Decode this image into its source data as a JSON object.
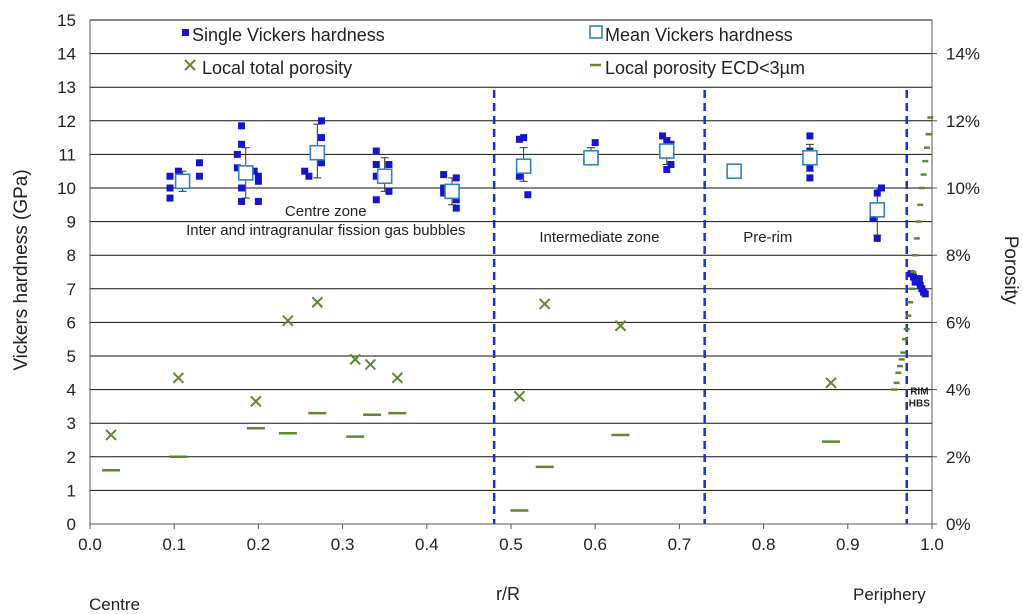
{
  "chart_data": {
    "type": "scatter",
    "xlabel": "r/R",
    "ylabel": "Vickers hardness (GPa)",
    "y2label": "Porosity",
    "xlim": [
      0.0,
      1.0
    ],
    "ylim": [
      0,
      15
    ],
    "y2lim": [
      0,
      0.15
    ],
    "grid": "horizontal",
    "x_ticks": [
      "0.0",
      "0.1",
      "0.2",
      "0.3",
      "0.4",
      "0.5",
      "0.6",
      "0.7",
      "0.8",
      "0.9",
      "1.0"
    ],
    "y_ticks": [
      "0",
      "1",
      "2",
      "3",
      "4",
      "5",
      "6",
      "7",
      "8",
      "9",
      "10",
      "11",
      "12",
      "13",
      "14",
      "15"
    ],
    "y2_ticks": [
      "0%",
      "2%",
      "4%",
      "6%",
      "8%",
      "10%",
      "12%",
      "14%"
    ],
    "x_end_labels": {
      "left": "Centre",
      "right": "Periphery"
    },
    "legend": {
      "placement": "top",
      "items": [
        {
          "label": "Single Vickers hardness",
          "marker": "square-filled",
          "color": "#1515cc"
        },
        {
          "label": "Mean Vickers hardness",
          "marker": "square-open",
          "color": "#2f84c6"
        },
        {
          "label": "Local total porosity",
          "marker": "x",
          "color": "#5e8a2e"
        },
        {
          "label": "Local porosity ECD<3µm",
          "marker": "dash",
          "color": "#5e8a2e"
        }
      ]
    },
    "zone_boundaries": [
      0.48,
      0.73,
      0.97
    ],
    "annotations": [
      {
        "lines": [
          "Centre zone",
          "Inter and intragranular fission gas bubbles"
        ],
        "x": 0.28,
        "y": 8.6
      },
      {
        "lines": [
          "Intermediate zone"
        ],
        "x": 0.605,
        "y": 8.4
      },
      {
        "lines": [
          "Pre-rim"
        ],
        "x": 0.805,
        "y": 8.4
      },
      {
        "lines": [
          "RIM",
          "HBS"
        ],
        "x": 0.985,
        "y": 3.5
      }
    ],
    "series": [
      {
        "name": "Single Vickers hardness",
        "axis": "left",
        "points": [
          [
            0.095,
            10.35
          ],
          [
            0.095,
            10.0
          ],
          [
            0.095,
            9.7
          ],
          [
            0.105,
            10.5
          ],
          [
            0.13,
            10.75
          ],
          [
            0.13,
            10.35
          ],
          [
            0.175,
            11.0
          ],
          [
            0.175,
            10.6
          ],
          [
            0.18,
            11.85
          ],
          [
            0.18,
            11.3
          ],
          [
            0.18,
            10.0
          ],
          [
            0.18,
            9.6
          ],
          [
            0.195,
            10.5
          ],
          [
            0.2,
            10.35
          ],
          [
            0.2,
            10.2
          ],
          [
            0.2,
            9.6
          ],
          [
            0.255,
            10.5
          ],
          [
            0.26,
            10.35
          ],
          [
            0.275,
            12.0
          ],
          [
            0.275,
            11.5
          ],
          [
            0.275,
            10.75
          ],
          [
            0.34,
            11.1
          ],
          [
            0.34,
            10.7
          ],
          [
            0.34,
            10.35
          ],
          [
            0.34,
            9.65
          ],
          [
            0.355,
            10.7
          ],
          [
            0.355,
            10.35
          ],
          [
            0.355,
            9.9
          ],
          [
            0.42,
            10.4
          ],
          [
            0.42,
            10.0
          ],
          [
            0.42,
            9.85
          ],
          [
            0.435,
            10.3
          ],
          [
            0.435,
            9.65
          ],
          [
            0.435,
            9.4
          ],
          [
            0.51,
            11.45
          ],
          [
            0.515,
            11.5
          ],
          [
            0.51,
            10.35
          ],
          [
            0.52,
            10.6
          ],
          [
            0.52,
            9.8
          ],
          [
            0.59,
            10.9
          ],
          [
            0.59,
            10.8
          ],
          [
            0.6,
            11.35
          ],
          [
            0.6,
            11.0
          ],
          [
            0.6,
            10.8
          ],
          [
            0.68,
            11.55
          ],
          [
            0.685,
            11.4
          ],
          [
            0.69,
            11.3
          ],
          [
            0.685,
            10.55
          ],
          [
            0.69,
            10.7
          ],
          [
            0.855,
            11.55
          ],
          [
            0.855,
            11.1
          ],
          [
            0.855,
            10.6
          ],
          [
            0.855,
            10.3
          ],
          [
            0.93,
            9.15
          ],
          [
            0.93,
            9.1
          ],
          [
            0.935,
            9.85
          ],
          [
            0.94,
            10.0
          ],
          [
            0.935,
            8.5
          ],
          [
            0.975,
            7.45
          ],
          [
            0.978,
            7.35
          ],
          [
            0.98,
            7.3
          ],
          [
            0.982,
            7.25
          ],
          [
            0.984,
            7.2
          ],
          [
            0.986,
            7.1
          ],
          [
            0.988,
            7.0
          ],
          [
            0.99,
            6.9
          ],
          [
            0.992,
            6.85
          ],
          [
            0.98,
            7.2
          ],
          [
            0.985,
            7.3
          ]
        ]
      },
      {
        "name": "Mean Vickers hardness",
        "axis": "left",
        "points": [
          [
            0.11,
            10.2
          ],
          [
            0.185,
            10.45
          ],
          [
            0.27,
            11.05
          ],
          [
            0.35,
            10.35
          ],
          [
            0.43,
            9.9
          ],
          [
            0.515,
            10.65
          ],
          [
            0.595,
            10.9
          ],
          [
            0.685,
            11.1
          ],
          [
            0.765,
            10.5
          ],
          [
            0.855,
            10.9
          ],
          [
            0.935,
            9.35
          ]
        ],
        "error_low": [
          9.9,
          9.7,
          10.3,
          9.9,
          9.5,
          10.2,
          10.7,
          10.7,
          10.5,
          10.5,
          8.6
        ],
        "error_high": [
          10.5,
          11.2,
          11.9,
          10.9,
          10.3,
          11.2,
          11.2,
          11.5,
          10.5,
          11.3,
          10.0
        ]
      },
      {
        "name": "Local total porosity",
        "axis": "right",
        "points": [
          [
            0.025,
            0.0265
          ],
          [
            0.105,
            0.0435
          ],
          [
            0.197,
            0.0365
          ],
          [
            0.235,
            0.0605
          ],
          [
            0.27,
            0.066
          ],
          [
            0.315,
            0.049
          ],
          [
            0.333,
            0.0475
          ],
          [
            0.365,
            0.0435
          ],
          [
            0.51,
            0.038
          ],
          [
            0.54,
            0.0655
          ],
          [
            0.63,
            0.059
          ],
          [
            0.88,
            0.042
          ]
        ]
      },
      {
        "name": "Local porosity ECD<3µm",
        "axis": "right",
        "points": [
          [
            0.025,
            0.016
          ],
          [
            0.105,
            0.02
          ],
          [
            0.197,
            0.0285
          ],
          [
            0.235,
            0.027
          ],
          [
            0.27,
            0.033
          ],
          [
            0.315,
            0.026
          ],
          [
            0.335,
            0.0325
          ],
          [
            0.365,
            0.033
          ],
          [
            0.51,
            0.004
          ],
          [
            0.54,
            0.017
          ],
          [
            0.63,
            0.0265
          ],
          [
            0.88,
            0.0245
          ],
          [
            0.955,
            0.04
          ],
          [
            0.958,
            0.042
          ],
          [
            0.96,
            0.045
          ],
          [
            0.962,
            0.047
          ],
          [
            0.964,
            0.049
          ],
          [
            0.966,
            0.051
          ],
          [
            0.968,
            0.055
          ],
          [
            0.97,
            0.058
          ],
          [
            0.972,
            0.062
          ],
          [
            0.974,
            0.066
          ],
          [
            0.976,
            0.07
          ],
          [
            0.978,
            0.075
          ],
          [
            0.98,
            0.08
          ],
          [
            0.982,
            0.085
          ],
          [
            0.984,
            0.09
          ],
          [
            0.986,
            0.095
          ],
          [
            0.988,
            0.1
          ],
          [
            0.99,
            0.104
          ],
          [
            0.992,
            0.108
          ],
          [
            0.994,
            0.112
          ],
          [
            0.996,
            0.116
          ],
          [
            0.998,
            0.121
          ]
        ]
      }
    ]
  }
}
